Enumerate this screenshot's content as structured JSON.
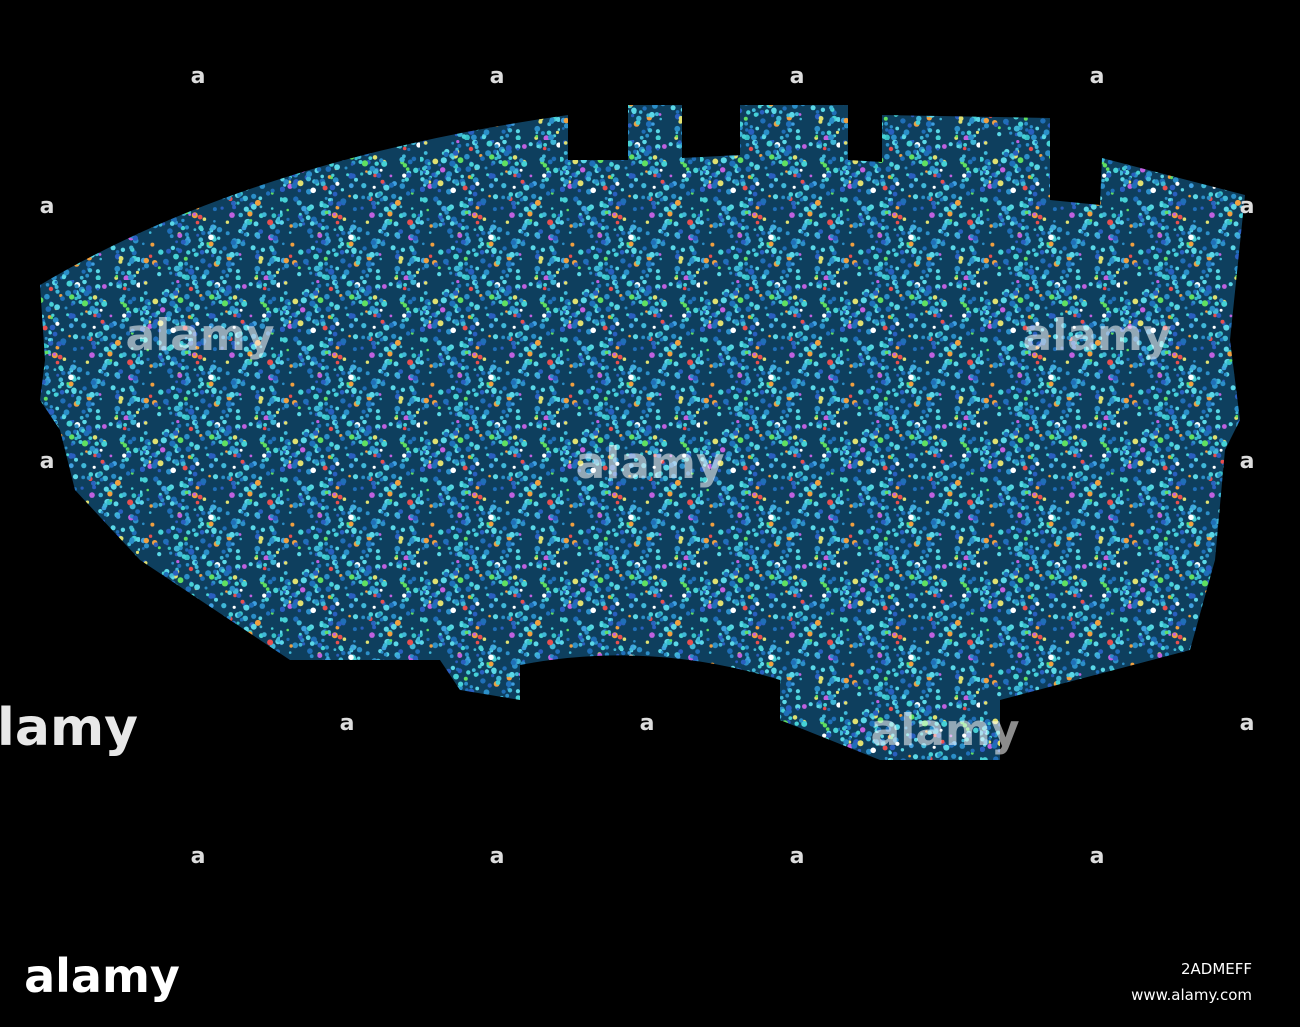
{
  "watermark": {
    "mark": "a",
    "brand": "alamy",
    "image_id": "2ADMEFF",
    "url": "www.alamy.com"
  }
}
